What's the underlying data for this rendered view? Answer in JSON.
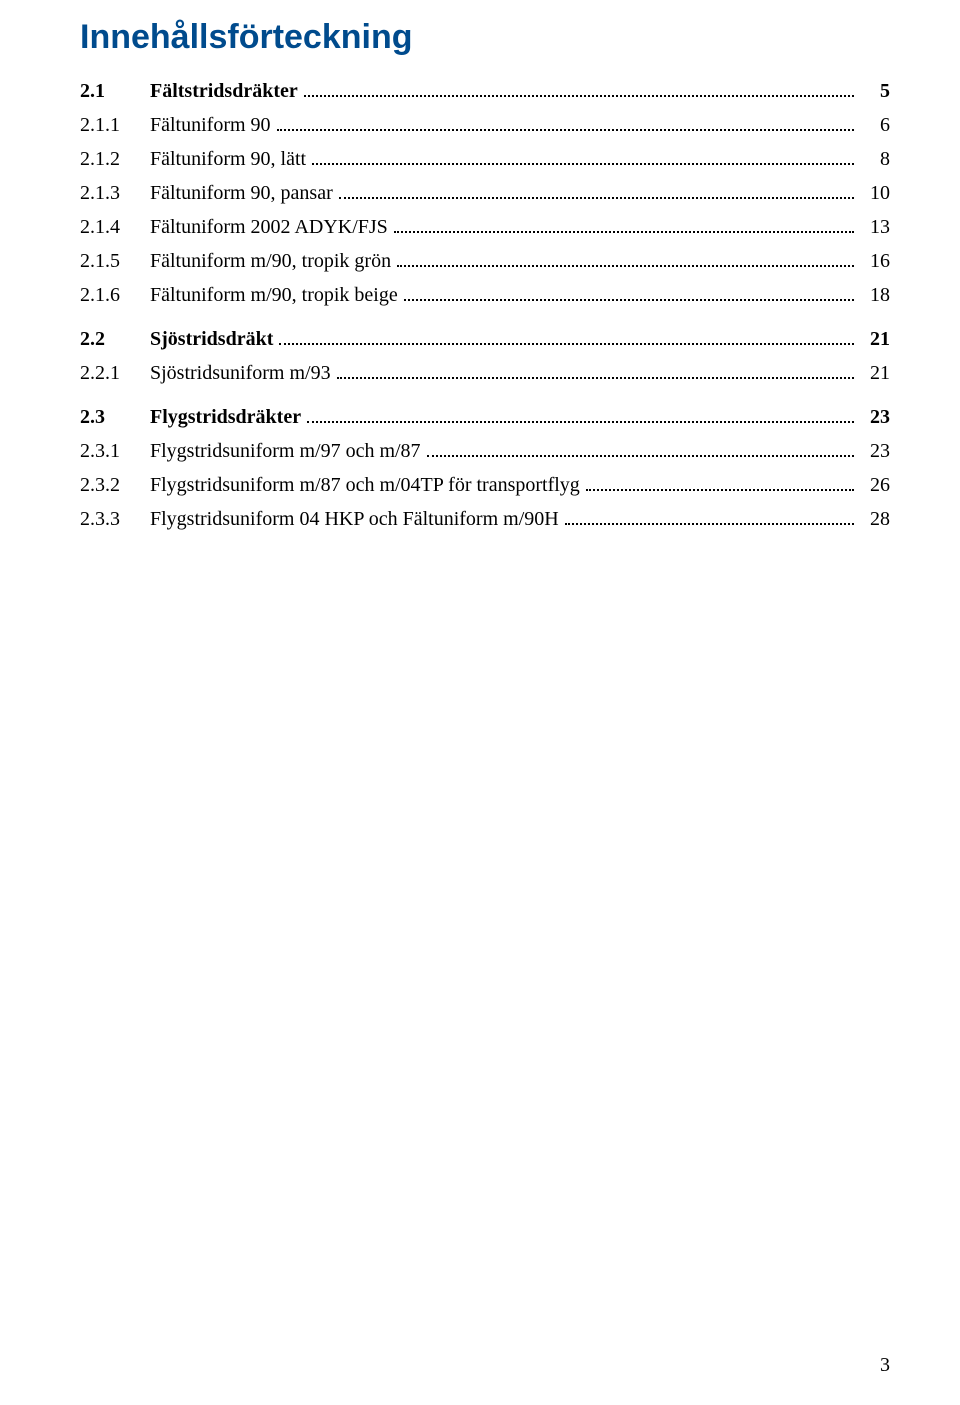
{
  "title": "Innehållsförteckning",
  "title_color": "#004b8d",
  "background_color": "#ffffff",
  "text_color": "#000000",
  "dot_leader_color": "#000000",
  "page_number": "3",
  "font_sizes": {
    "title": 34,
    "toc_entry": 20,
    "footer": 20
  },
  "toc": [
    {
      "level": 1,
      "num": "2.1",
      "label": "Fältstridsdräkter",
      "page": "5"
    },
    {
      "level": 2,
      "num": "2.1.1",
      "label": "Fältuniform 90",
      "page": "6"
    },
    {
      "level": 2,
      "num": "2.1.2",
      "label": "Fältuniform 90, lätt",
      "page": "8"
    },
    {
      "level": 2,
      "num": "2.1.3",
      "label": "Fältuniform 90, pansar",
      "page": "10"
    },
    {
      "level": 2,
      "num": "2.1.4",
      "label": "Fältuniform 2002 ADYK/FJS",
      "page": "13"
    },
    {
      "level": 2,
      "num": "2.1.5",
      "label": "Fältuniform m/90, tropik grön",
      "page": "16"
    },
    {
      "level": 2,
      "num": "2.1.6",
      "label": "Fältuniform m/90, tropik beige",
      "page": "18"
    },
    {
      "level": 1,
      "num": "2.2",
      "label": "Sjöstridsdräkt",
      "page": "21"
    },
    {
      "level": 2,
      "num": "2.2.1",
      "label": "Sjöstridsuniform m/93",
      "page": "21"
    },
    {
      "level": 1,
      "num": "2.3",
      "label": "Flygstridsdräkter",
      "page": "23"
    },
    {
      "level": 2,
      "num": "2.3.1",
      "label": "Flygstridsuniform m/97 och m/87",
      "page": "23"
    },
    {
      "level": 2,
      "num": "2.3.2",
      "label": "Flygstridsuniform m/87 och m/04TP för transportflyg",
      "page": "26"
    },
    {
      "level": 2,
      "num": "2.3.3",
      "label": "Flygstridsuniform 04 HKP och Fältuniform m/90H",
      "page": "28"
    }
  ]
}
